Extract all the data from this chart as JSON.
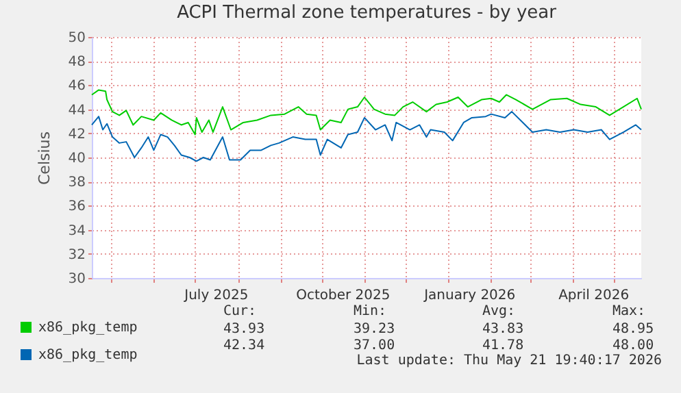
{
  "chart_data": {
    "type": "line",
    "title": "ACPI Thermal zone temperatures - by year",
    "ylabel": "Celsius",
    "series": [
      {
        "name": "x86_pkg_temp",
        "color": "#00cc00",
        "x": [
          "2025-04-17",
          "2025-04-22",
          "2025-04-27",
          "2025-04-28",
          "2025-05-02",
          "2025-05-07",
          "2025-05-12",
          "2025-05-17",
          "2025-05-23",
          "2025-06-01",
          "2025-06-06",
          "2025-06-14",
          "2025-06-21",
          "2025-06-26",
          "2025-07-01",
          "2025-07-02",
          "2025-07-06",
          "2025-07-11",
          "2025-07-14",
          "2025-07-21",
          "2025-07-27",
          "2025-08-05",
          "2025-08-15",
          "2025-08-25",
          "2025-09-04",
          "2025-09-14",
          "2025-09-20",
          "2025-09-27",
          "2025-09-30",
          "2025-10-07",
          "2025-10-15",
          "2025-10-20",
          "2025-10-27",
          "2025-11-01",
          "2025-11-08",
          "2025-11-16",
          "2025-11-23",
          "2025-11-29",
          "2025-12-06",
          "2025-12-16",
          "2025-12-23",
          "2025-12-31",
          "2026-01-08",
          "2026-01-15",
          "2026-01-25",
          "2026-02-01",
          "2026-02-07",
          "2026-02-12",
          "2026-02-19",
          "2026-03-03",
          "2026-03-16",
          "2026-03-28",
          "2026-04-07",
          "2026-04-18",
          "2026-04-28",
          "2026-05-08",
          "2026-05-18",
          "2026-05-21"
        ],
        "values": [
          45.2,
          45.6,
          45.5,
          44.8,
          43.8,
          43.5,
          43.9,
          42.7,
          43.4,
          43.1,
          43.7,
          43.1,
          42.7,
          42.9,
          41.9,
          43.3,
          42.1,
          43.1,
          42.1,
          44.2,
          42.3,
          42.9,
          43.1,
          43.5,
          43.6,
          44.2,
          43.6,
          43.5,
          42.3,
          43.1,
          42.9,
          44.0,
          44.2,
          45.0,
          44.0,
          43.6,
          43.5,
          44.2,
          44.6,
          43.8,
          44.4,
          44.6,
          45.0,
          44.2,
          44.8,
          44.9,
          44.6,
          45.2,
          44.8,
          44.0,
          44.8,
          44.9,
          44.4,
          44.2,
          43.5,
          44.2,
          44.9,
          44.0
        ]
      },
      {
        "name": "x86_pkg_temp",
        "color": "#0066b3",
        "x": [
          "2025-04-17",
          "2025-04-22",
          "2025-04-25",
          "2025-04-28",
          "2025-05-02",
          "2025-05-07",
          "2025-05-12",
          "2025-05-18",
          "2025-05-23",
          "2025-05-28",
          "2025-06-01",
          "2025-06-06",
          "2025-06-11",
          "2025-06-16",
          "2025-06-21",
          "2025-06-27",
          "2025-07-02",
          "2025-07-07",
          "2025-07-12",
          "2025-07-21",
          "2025-07-26",
          "2025-08-03",
          "2025-08-10",
          "2025-08-18",
          "2025-08-25",
          "2025-08-31",
          "2025-09-10",
          "2025-09-19",
          "2025-09-27",
          "2025-09-30",
          "2025-10-05",
          "2025-10-15",
          "2025-10-20",
          "2025-10-27",
          "2025-11-01",
          "2025-11-09",
          "2025-11-16",
          "2025-11-21",
          "2025-11-24",
          "2025-12-04",
          "2025-12-11",
          "2025-12-16",
          "2025-12-19",
          "2025-12-29",
          "2026-01-04",
          "2026-01-12",
          "2026-01-18",
          "2026-01-28",
          "2026-02-01",
          "2026-02-11",
          "2026-02-16",
          "2026-02-24",
          "2026-03-03",
          "2026-03-13",
          "2026-03-23",
          "2026-04-02",
          "2026-04-12",
          "2026-04-22",
          "2026-04-28",
          "2026-05-08",
          "2026-05-17",
          "2026-05-21"
        ],
        "values": [
          42.7,
          43.4,
          42.3,
          42.8,
          41.7,
          41.2,
          41.3,
          40.0,
          40.8,
          41.7,
          40.6,
          41.9,
          41.7,
          41.0,
          40.2,
          40.0,
          39.7,
          40.0,
          39.8,
          41.7,
          39.8,
          39.8,
          40.6,
          40.6,
          41.0,
          41.2,
          41.7,
          41.5,
          41.5,
          40.2,
          41.5,
          40.8,
          41.9,
          42.1,
          43.3,
          42.3,
          42.7,
          41.4,
          42.9,
          42.3,
          42.7,
          41.7,
          42.3,
          42.1,
          41.4,
          42.9,
          43.3,
          43.4,
          43.6,
          43.3,
          43.8,
          42.9,
          42.1,
          42.3,
          42.1,
          42.3,
          42.1,
          42.3,
          41.5,
          42.1,
          42.7,
          42.3
        ]
      }
    ],
    "xlim": [
      "2025-04-17",
      "2026-05-21"
    ],
    "xticks": [
      {
        "value": "2025-05-01",
        "label": null
      },
      {
        "value": "2025-06-01",
        "label": null
      },
      {
        "value": "2025-07-01",
        "label": null
      },
      {
        "value": "2025-07-16",
        "label": "July 2025"
      },
      {
        "value": "2025-08-01",
        "label": null
      },
      {
        "value": "2025-09-01",
        "label": null
      },
      {
        "value": "2025-10-01",
        "label": null
      },
      {
        "value": "2025-10-16",
        "label": "October 2025"
      },
      {
        "value": "2025-11-01",
        "label": null
      },
      {
        "value": "2025-12-01",
        "label": null
      },
      {
        "value": "2026-01-01",
        "label": null
      },
      {
        "value": "2026-01-16",
        "label": "January 2026"
      },
      {
        "value": "2026-02-01",
        "label": null
      },
      {
        "value": "2026-03-01",
        "label": null
      },
      {
        "value": "2026-04-01",
        "label": null
      },
      {
        "value": "2026-04-16",
        "label": "April 2026"
      },
      {
        "value": "2026-05-01",
        "label": null
      }
    ],
    "ylim": [
      30,
      50
    ],
    "yticks": [
      30,
      32,
      34,
      36,
      38,
      40,
      42,
      44,
      46,
      48,
      50
    ],
    "grid": true,
    "legend": "bottom left",
    "annotations": [
      "Cur:",
      "Min:",
      "Avg:",
      "Max:",
      "43.93",
      "39.23",
      "43.83",
      "48.95",
      "42.34",
      "37.00",
      "41.78",
      "48.00",
      "Last update: Thu May 21 19:40:17 2026"
    ]
  }
}
